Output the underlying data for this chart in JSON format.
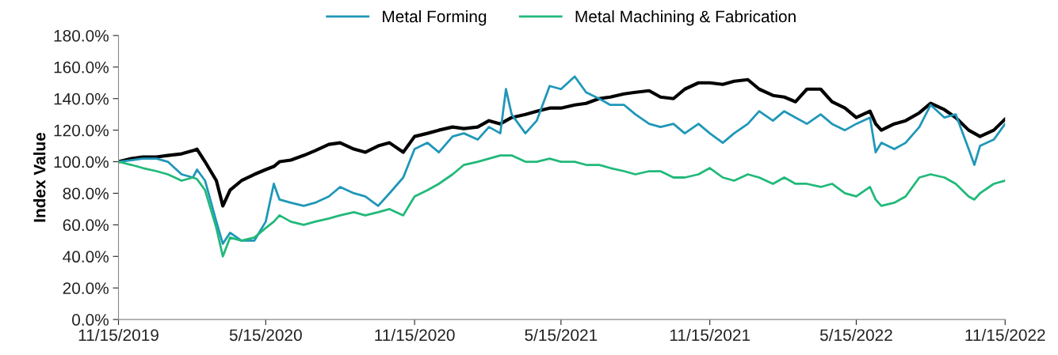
{
  "chart_data": {
    "type": "line",
    "ylabel": "Index Value",
    "legend": "top",
    "grid": false,
    "marker": "none",
    "line_style": "solid",
    "x": [
      "2019-11-15",
      "2019-12-01",
      "2019-12-15",
      "2020-01-01",
      "2020-01-15",
      "2020-02-01",
      "2020-02-15",
      "2020-02-20",
      "2020-03-01",
      "2020-03-15",
      "2020-03-23",
      "2020-04-01",
      "2020-04-15",
      "2020-05-01",
      "2020-05-15",
      "2020-05-25",
      "2020-06-01",
      "2020-06-15",
      "2020-07-01",
      "2020-07-15",
      "2020-08-01",
      "2020-08-15",
      "2020-09-01",
      "2020-09-15",
      "2020-10-01",
      "2020-10-15",
      "2020-11-01",
      "2020-11-15",
      "2020-12-01",
      "2020-12-15",
      "2021-01-01",
      "2021-01-15",
      "2021-02-01",
      "2021-02-15",
      "2021-03-01",
      "2021-03-08",
      "2021-03-15",
      "2021-04-01",
      "2021-04-15",
      "2021-05-01",
      "2021-05-15",
      "2021-06-01",
      "2021-06-15",
      "2021-07-01",
      "2021-07-15",
      "2021-08-01",
      "2021-08-15",
      "2021-09-01",
      "2021-09-15",
      "2021-10-01",
      "2021-10-15",
      "2021-11-01",
      "2021-11-15",
      "2021-12-01",
      "2021-12-15",
      "2022-01-01",
      "2022-01-15",
      "2022-02-01",
      "2022-02-15",
      "2022-03-01",
      "2022-03-15",
      "2022-04-01",
      "2022-04-15",
      "2022-05-01",
      "2022-05-15",
      "2022-06-01",
      "2022-06-08",
      "2022-06-15",
      "2022-07-01",
      "2022-07-15",
      "2022-08-01",
      "2022-08-15",
      "2022-09-01",
      "2022-09-15",
      "2022-10-01",
      "2022-10-08",
      "2022-10-15",
      "2022-11-01",
      "2022-11-15"
    ],
    "series": [
      {
        "color": "#000000",
        "values": [
          100,
          102,
          103,
          103,
          104,
          105,
          107,
          108,
          100,
          88,
          72,
          82,
          88,
          92,
          95,
          97,
          100,
          101,
          104,
          107,
          111,
          112,
          108,
          106,
          110,
          112,
          106,
          116,
          118,
          120,
          122,
          121,
          122,
          126,
          124,
          126,
          128,
          130,
          132,
          134,
          134,
          136,
          137,
          140,
          141,
          143,
          144,
          145,
          141,
          140,
          146,
          150,
          150,
          149,
          151,
          152,
          146,
          142,
          141,
          138,
          146,
          146,
          138,
          134,
          128,
          132,
          124,
          120,
          124,
          126,
          131,
          137,
          133,
          128,
          120,
          118,
          116,
          120,
          127
        ]
      },
      {
        "name": "Metal Forming",
        "color": "#1f97b8",
        "values": [
          100,
          101,
          102,
          102,
          100,
          92,
          90,
          95,
          88,
          62,
          48,
          55,
          50,
          50,
          62,
          86,
          76,
          74,
          72,
          74,
          78,
          84,
          80,
          78,
          72,
          80,
          90,
          108,
          112,
          106,
          116,
          118,
          114,
          122,
          118,
          146,
          130,
          118,
          126,
          148,
          146,
          154,
          144,
          140,
          136,
          136,
          130,
          124,
          122,
          124,
          118,
          124,
          118,
          112,
          118,
          124,
          132,
          126,
          132,
          128,
          124,
          130,
          124,
          120,
          124,
          128,
          106,
          112,
          108,
          112,
          122,
          136,
          128,
          130,
          108,
          98,
          110,
          114,
          124
        ]
      },
      {
        "name": "Metal Machining & Fabrication",
        "color": "#21b97a",
        "values": [
          100,
          98,
          96,
          94,
          92,
          88,
          90,
          89,
          82,
          58,
          40,
          52,
          50,
          52,
          58,
          62,
          66,
          62,
          60,
          62,
          64,
          66,
          68,
          66,
          68,
          70,
          66,
          78,
          82,
          86,
          92,
          98,
          100,
          102,
          104,
          104,
          104,
          100,
          100,
          102,
          100,
          100,
          98,
          98,
          96,
          94,
          92,
          94,
          94,
          90,
          90,
          92,
          96,
          90,
          88,
          92,
          90,
          86,
          90,
          86,
          86,
          84,
          86,
          80,
          78,
          84,
          76,
          72,
          74,
          78,
          90,
          92,
          90,
          86,
          78,
          76,
          80,
          86,
          88
        ]
      }
    ],
    "ylim": [
      0,
      180
    ],
    "yticks": [
      {
        "value": 0,
        "label": "0.0%"
      },
      {
        "value": 20,
        "label": "20.0%"
      },
      {
        "value": 40,
        "label": "40.0%"
      },
      {
        "value": 60,
        "label": "60.0%"
      },
      {
        "value": 80,
        "label": "80.0%"
      },
      {
        "value": 100,
        "label": "100.0%"
      },
      {
        "value": 120,
        "label": "120.0%"
      },
      {
        "value": 140,
        "label": "140.0%"
      },
      {
        "value": 160,
        "label": "160.0%"
      },
      {
        "value": 180,
        "label": "180.0%"
      }
    ],
    "xlim": [
      "2019-11-15",
      "2022-11-15"
    ],
    "xticks": [
      {
        "value": "2019-11-15",
        "label": "11/15/2019"
      },
      {
        "value": "2020-05-15",
        "label": "5/15/2020"
      },
      {
        "value": "2020-11-15",
        "label": "11/15/2020"
      },
      {
        "value": "2021-05-15",
        "label": "5/15/2021"
      },
      {
        "value": "2021-11-15",
        "label": "11/15/2021"
      },
      {
        "value": "2022-05-15",
        "label": "5/15/2022"
      },
      {
        "value": "2022-11-15",
        "label": "11/15/2022"
      }
    ]
  }
}
